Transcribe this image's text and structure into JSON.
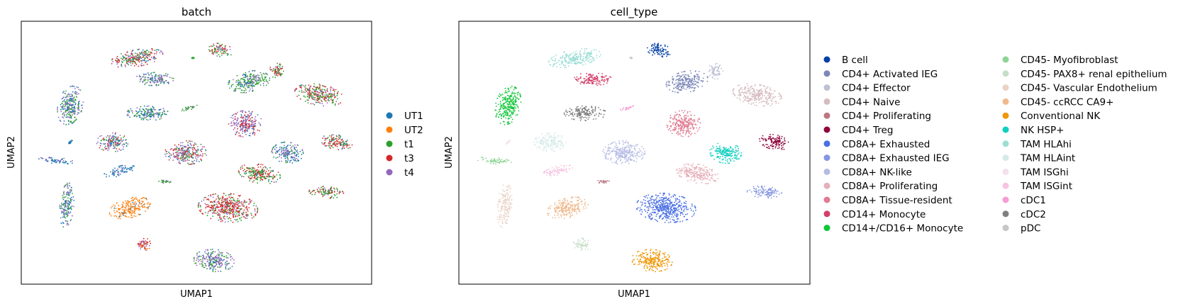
{
  "chart_data": [
    {
      "type": "scatter",
      "title": "batch",
      "xlabel": "UMAP1",
      "ylabel": "UMAP2",
      "grid": false,
      "legend_position": "right",
      "legend": [
        {
          "label": "UT1",
          "color": "#1f77b4"
        },
        {
          "label": "UT2",
          "color": "#ff7f0e"
        },
        {
          "label": "t1",
          "color": "#2ca02c"
        },
        {
          "label": "t3",
          "color": "#d62728"
        },
        {
          "label": "t4",
          "color": "#9467bd"
        }
      ],
      "clusters": [
        {
          "x": 0.33,
          "y": 0.86,
          "rx": 0.075,
          "ry": 0.032,
          "rot": -10,
          "mix": {
            "UT1": 0.15,
            "t1": 0.3,
            "t3": 0.35,
            "t4": 0.2
          }
        },
        {
          "x": 0.57,
          "y": 0.89,
          "rx": 0.035,
          "ry": 0.025,
          "rot": 10,
          "mix": {
            "t1": 0.4,
            "t3": 0.4,
            "t4": 0.2
          }
        },
        {
          "x": 0.38,
          "y": 0.78,
          "rx": 0.055,
          "ry": 0.025,
          "rot": 0,
          "mix": {
            "UT1": 0.2,
            "t1": 0.3,
            "t4": 0.5
          }
        },
        {
          "x": 0.65,
          "y": 0.77,
          "rx": 0.06,
          "ry": 0.04,
          "rot": -10,
          "mix": {
            "UT1": 0.25,
            "t1": 0.5,
            "t4": 0.25
          }
        },
        {
          "x": 0.73,
          "y": 0.81,
          "rx": 0.022,
          "ry": 0.03,
          "rot": 0,
          "mix": {
            "t1": 0.4,
            "t3": 0.4,
            "t4": 0.2
          }
        },
        {
          "x": 0.85,
          "y": 0.72,
          "rx": 0.07,
          "ry": 0.04,
          "rot": 10,
          "mix": {
            "t1": 0.4,
            "t3": 0.4,
            "t4": 0.2
          }
        },
        {
          "x": 0.14,
          "y": 0.68,
          "rx": 0.035,
          "ry": 0.075,
          "rot": 15,
          "mix": {
            "UT1": 0.3,
            "t1": 0.35,
            "t4": 0.35
          }
        },
        {
          "x": 0.36,
          "y": 0.65,
          "rx": 0.06,
          "ry": 0.028,
          "rot": 0,
          "mix": {
            "UT1": 0.4,
            "t1": 0.4,
            "t4": 0.2
          }
        },
        {
          "x": 0.48,
          "y": 0.67,
          "rx": 0.025,
          "ry": 0.007,
          "rot": -15,
          "mix": {
            "t1": 0.8,
            "t4": 0.2
          }
        },
        {
          "x": 0.64,
          "y": 0.61,
          "rx": 0.048,
          "ry": 0.05,
          "rot": 0,
          "mix": {
            "UT1": 0.2,
            "t3": 0.3,
            "t4": 0.5
          }
        },
        {
          "x": 0.26,
          "y": 0.54,
          "rx": 0.045,
          "ry": 0.036,
          "rot": 0,
          "mix": {
            "UT1": 0.3,
            "t1": 0.2,
            "t3": 0.2,
            "t4": 0.3
          }
        },
        {
          "x": 0.47,
          "y": 0.5,
          "rx": 0.06,
          "ry": 0.045,
          "rot": 0,
          "mix": {
            "UT1": 0.1,
            "t1": 0.2,
            "t3": 0.35,
            "t4": 0.35
          }
        },
        {
          "x": 0.76,
          "y": 0.5,
          "rx": 0.045,
          "ry": 0.04,
          "rot": 5,
          "mix": {
            "UT1": 0.4,
            "t1": 0.2,
            "t4": 0.4
          }
        },
        {
          "x": 0.9,
          "y": 0.54,
          "rx": 0.045,
          "ry": 0.028,
          "rot": 10,
          "mix": {
            "UT1": 0.2,
            "t1": 0.3,
            "t3": 0.5
          }
        },
        {
          "x": 0.1,
          "y": 0.47,
          "rx": 0.05,
          "ry": 0.012,
          "rot": 5,
          "mix": {
            "UT1": 0.7,
            "t4": 0.3
          }
        },
        {
          "x": 0.28,
          "y": 0.43,
          "rx": 0.045,
          "ry": 0.018,
          "rot": -15,
          "mix": {
            "UT1": 0.8,
            "t4": 0.2
          }
        },
        {
          "x": 0.68,
          "y": 0.42,
          "rx": 0.06,
          "ry": 0.036,
          "rot": 10,
          "mix": {
            "UT1": 0.1,
            "t1": 0.5,
            "t3": 0.4
          }
        },
        {
          "x": 0.41,
          "y": 0.39,
          "rx": 0.02,
          "ry": 0.006,
          "rot": 0,
          "mix": {
            "t1": 0.8,
            "t4": 0.2
          }
        },
        {
          "x": 0.13,
          "y": 0.3,
          "rx": 0.02,
          "ry": 0.085,
          "rot": 5,
          "mix": {
            "UT1": 0.3,
            "t1": 0.3,
            "t4": 0.4
          }
        },
        {
          "x": 0.31,
          "y": 0.29,
          "rx": 0.06,
          "ry": 0.037,
          "rot": -15,
          "mix": {
            "UT2": 0.9,
            "UT1": 0.1
          }
        },
        {
          "x": 0.59,
          "y": 0.29,
          "rx": 0.085,
          "ry": 0.055,
          "rot": 5,
          "mix": {
            "t3": 0.55,
            "t1": 0.25,
            "t4": 0.2
          }
        },
        {
          "x": 0.87,
          "y": 0.35,
          "rx": 0.05,
          "ry": 0.022,
          "rot": 5,
          "mix": {
            "t1": 0.5,
            "t3": 0.3,
            "t4": 0.2
          }
        },
        {
          "x": 0.35,
          "y": 0.15,
          "rx": 0.025,
          "ry": 0.025,
          "rot": 0,
          "mix": {
            "t3": 0.5,
            "t4": 0.3,
            "UT2": 0.2
          }
        },
        {
          "x": 0.55,
          "y": 0.09,
          "rx": 0.058,
          "ry": 0.042,
          "rot": 5,
          "mix": {
            "t4": 0.55,
            "t1": 0.25,
            "UT1": 0.2
          }
        },
        {
          "x": 0.14,
          "y": 0.54,
          "rx": 0.008,
          "ry": 0.003,
          "rot": -45,
          "mix": {
            "UT1": 1.0
          }
        },
        {
          "x": 0.49,
          "y": 0.86,
          "rx": 0.004,
          "ry": 0.003,
          "rot": 0,
          "mix": {
            "t1": 1.0
          }
        }
      ]
    },
    {
      "type": "scatter",
      "title": "cell_type",
      "xlabel": "UMAP1",
      "ylabel": "UMAP2",
      "grid": false,
      "legend_position": "right",
      "legend": [
        {
          "label": "B cell",
          "color": "#023fa5"
        },
        {
          "label": "CD4+ Activated IEG",
          "color": "#7d87b9"
        },
        {
          "label": "CD4+ Effector",
          "color": "#bec1d4"
        },
        {
          "label": "CD4+ Naive",
          "color": "#d6bcc0"
        },
        {
          "label": "CD4+ Proliferating",
          "color": "#bb7784"
        },
        {
          "label": "CD4+ Treg",
          "color": "#8e063b"
        },
        {
          "label": "CD8A+ Exhausted",
          "color": "#4a6fe3"
        },
        {
          "label": "CD8A+ Exhausted IEG",
          "color": "#8595e1"
        },
        {
          "label": "CD8A+ NK-like",
          "color": "#b5bbe3"
        },
        {
          "label": "CD8A+ Proliferating",
          "color": "#e6afb9"
        },
        {
          "label": "CD8A+ Tissue-resident",
          "color": "#e07b91"
        },
        {
          "label": "CD14+ Monocyte",
          "color": "#d33f6a"
        },
        {
          "label": "CD14+/CD16+ Monocyte",
          "color": "#11c638"
        },
        {
          "label": "CD45- Myofibroblast",
          "color": "#8dd593"
        },
        {
          "label": "CD45- PAX8+ renal epithelium",
          "color": "#c6dec7"
        },
        {
          "label": "CD45- Vascular Endothelium",
          "color": "#ead3c6"
        },
        {
          "label": "CD45- ccRCC CA9+",
          "color": "#f0b98d"
        },
        {
          "label": "Conventional NK",
          "color": "#ef9708"
        },
        {
          "label": "NK HSP+",
          "color": "#0fcfc0"
        },
        {
          "label": "TAM HLAhi",
          "color": "#9cded6"
        },
        {
          "label": "TAM HLAint",
          "color": "#d5eae7"
        },
        {
          "label": "TAM ISGhi",
          "color": "#f3e1eb"
        },
        {
          "label": "TAM ISGint",
          "color": "#f6c4e1"
        },
        {
          "label": "cDC1",
          "color": "#f79cd4"
        },
        {
          "label": "cDC2",
          "color": "#7f7f7f"
        },
        {
          "label": "pDC",
          "color": "#c7c7c7"
        }
      ],
      "clusters": [
        {
          "x": 0.33,
          "y": 0.86,
          "rx": 0.075,
          "ry": 0.032,
          "rot": -10,
          "cell_type": "TAM HLAhi"
        },
        {
          "x": 0.57,
          "y": 0.89,
          "rx": 0.035,
          "ry": 0.025,
          "rot": 10,
          "cell_type": "B cell"
        },
        {
          "x": 0.38,
          "y": 0.78,
          "rx": 0.055,
          "ry": 0.025,
          "rot": 0,
          "cell_type": "CD14+ Monocyte"
        },
        {
          "x": 0.65,
          "y": 0.77,
          "rx": 0.06,
          "ry": 0.04,
          "rot": -10,
          "cell_type": "CD4+ Activated IEG"
        },
        {
          "x": 0.73,
          "y": 0.81,
          "rx": 0.022,
          "ry": 0.03,
          "rot": 0,
          "cell_type": "CD4+ Effector"
        },
        {
          "x": 0.85,
          "y": 0.72,
          "rx": 0.07,
          "ry": 0.04,
          "rot": 10,
          "cell_type": "CD4+ Naive"
        },
        {
          "x": 0.14,
          "y": 0.68,
          "rx": 0.035,
          "ry": 0.075,
          "rot": 15,
          "cell_type": "CD14+/CD16+ Monocyte"
        },
        {
          "x": 0.36,
          "y": 0.65,
          "rx": 0.06,
          "ry": 0.028,
          "rot": 0,
          "cell_type": "cDC2"
        },
        {
          "x": 0.48,
          "y": 0.67,
          "rx": 0.025,
          "ry": 0.007,
          "rot": -15,
          "cell_type": "cDC1"
        },
        {
          "x": 0.64,
          "y": 0.61,
          "rx": 0.048,
          "ry": 0.05,
          "rot": 0,
          "cell_type": "CD8A+ Tissue-resident"
        },
        {
          "x": 0.26,
          "y": 0.54,
          "rx": 0.045,
          "ry": 0.036,
          "rot": 0,
          "cell_type": "TAM HLAint"
        },
        {
          "x": 0.47,
          "y": 0.5,
          "rx": 0.06,
          "ry": 0.045,
          "rot": 0,
          "cell_type": "CD8A+ NK-like"
        },
        {
          "x": 0.76,
          "y": 0.5,
          "rx": 0.045,
          "ry": 0.04,
          "rot": 5,
          "cell_type": "NK HSP+"
        },
        {
          "x": 0.9,
          "y": 0.54,
          "rx": 0.045,
          "ry": 0.028,
          "rot": 10,
          "cell_type": "CD4+ Treg"
        },
        {
          "x": 0.1,
          "y": 0.47,
          "rx": 0.05,
          "ry": 0.012,
          "rot": 5,
          "cell_type": "CD45- Myofibroblast"
        },
        {
          "x": 0.28,
          "y": 0.43,
          "rx": 0.045,
          "ry": 0.018,
          "rot": -15,
          "cell_type": "TAM ISGint"
        },
        {
          "x": 0.68,
          "y": 0.42,
          "rx": 0.06,
          "ry": 0.036,
          "rot": 10,
          "cell_type": "CD8A+ Proliferating"
        },
        {
          "x": 0.41,
          "y": 0.39,
          "rx": 0.02,
          "ry": 0.006,
          "rot": 0,
          "cell_type": "CD4+ Proliferating"
        },
        {
          "x": 0.13,
          "y": 0.3,
          "rx": 0.02,
          "ry": 0.085,
          "rot": 5,
          "cell_type": "CD45- Vascular Endothelium"
        },
        {
          "x": 0.31,
          "y": 0.29,
          "rx": 0.06,
          "ry": 0.037,
          "rot": -15,
          "cell_type": "CD45- ccRCC CA9+"
        },
        {
          "x": 0.59,
          "y": 0.29,
          "rx": 0.085,
          "ry": 0.055,
          "rot": 5,
          "cell_type": "CD8A+ Exhausted"
        },
        {
          "x": 0.87,
          "y": 0.35,
          "rx": 0.05,
          "ry": 0.022,
          "rot": 5,
          "cell_type": "CD8A+ Exhausted IEG"
        },
        {
          "x": 0.35,
          "y": 0.15,
          "rx": 0.025,
          "ry": 0.025,
          "rot": 0,
          "cell_type": "CD45- PAX8+ renal epithelium"
        },
        {
          "x": 0.55,
          "y": 0.09,
          "rx": 0.058,
          "ry": 0.042,
          "rot": 5,
          "cell_type": "Conventional NK"
        },
        {
          "x": 0.14,
          "y": 0.54,
          "rx": 0.008,
          "ry": 0.003,
          "rot": -45,
          "cell_type": "TAM ISGhi"
        },
        {
          "x": 0.49,
          "y": 0.86,
          "rx": 0.004,
          "ry": 0.003,
          "rot": 0,
          "cell_type": "pDC"
        }
      ]
    }
  ]
}
